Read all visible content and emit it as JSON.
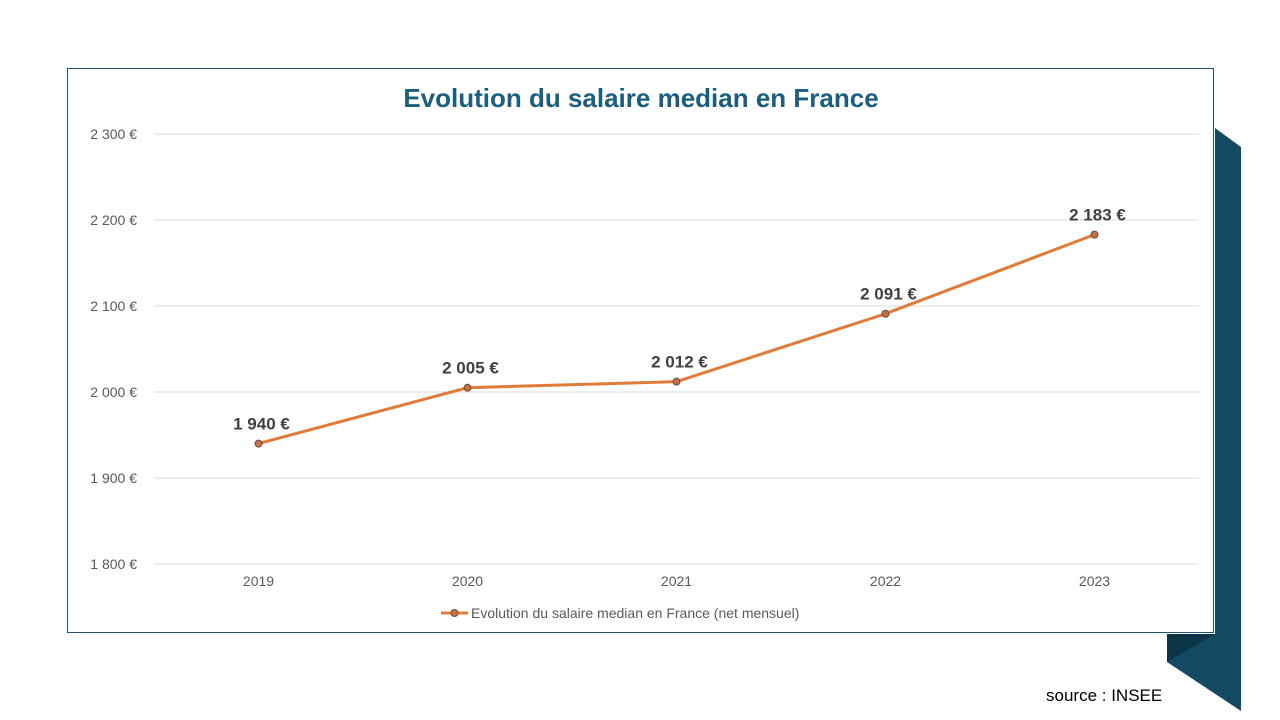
{
  "chart_data": {
    "type": "line",
    "title": "Evolution du salaire median en France",
    "categories": [
      "2019",
      "2020",
      "2021",
      "2022",
      "2023"
    ],
    "series": [
      {
        "name": "Evolution du salaire median en France (net mensuel)",
        "values": [
          1940,
          2005,
          2012,
          2091,
          2183
        ],
        "labels": [
          "1 940 €",
          "2 005 €",
          "2 012 €",
          "2 091 €",
          "2 183 €"
        ],
        "color": "#e07b39"
      }
    ],
    "ylim": [
      1800,
      2300
    ],
    "yticks": [
      1800,
      1900,
      2000,
      2100,
      2200,
      2300
    ],
    "ytick_labels": [
      "1 800 €",
      "1 900 €",
      "2 000 €",
      "2 100 €",
      "2 200 €",
      "2 300 €"
    ],
    "grid": true,
    "legend": "bottom",
    "xlabel": "",
    "ylabel": ""
  },
  "colors": {
    "title": "#1a5e80",
    "ribbon": "#134a62",
    "frame": "#1f5370"
  },
  "source": "source : INSEE"
}
